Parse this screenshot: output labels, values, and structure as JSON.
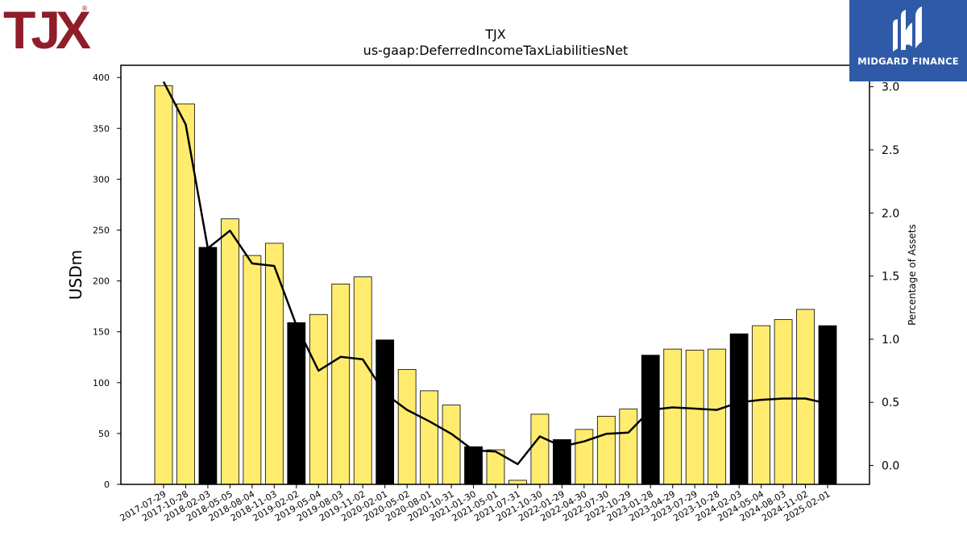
{
  "brand": {
    "logo_text": "TJX",
    "registered_mark": "®",
    "color": "#8f1d2a"
  },
  "partner": {
    "name": "MIDGARD FINANCE",
    "background": "#2f5aa8"
  },
  "chart_data": {
    "type": "bar",
    "title": "TJX",
    "subtitle": "us-gaap:DeferredIncomeTaxLiabilitiesNet",
    "ylabel": "USDm",
    "y2label": "Percentage of Assets",
    "ylim": [
      0,
      412
    ],
    "y2lim": [
      -0.15,
      3.17
    ],
    "yticks": [
      0,
      50,
      100,
      150,
      200,
      250,
      300,
      350,
      400
    ],
    "y2ticks": [
      "0.0",
      "0.5",
      "1.0",
      "1.5",
      "2.0",
      "2.5",
      "3.0"
    ],
    "bar_colors": {
      "quarter": "#ffec6e",
      "fiscal_year_end": "#000000"
    },
    "line_color": "#000000",
    "grid": false,
    "categories": [
      "2017-07-29",
      "2017-10-28",
      "2018-02-03",
      "2018-05-05",
      "2018-08-04",
      "2018-11-03",
      "2019-02-02",
      "2019-05-04",
      "2019-08-03",
      "2019-11-02",
      "2020-02-01",
      "2020-05-02",
      "2020-08-01",
      "2020-10-31",
      "2021-01-30",
      "2021-05-01",
      "2021-07-31",
      "2021-10-30",
      "2022-01-29",
      "2022-04-30",
      "2022-07-30",
      "2022-10-29",
      "2023-01-28",
      "2023-04-29",
      "2023-07-29",
      "2023-10-28",
      "2024-02-03",
      "2024-05-04",
      "2024-08-03",
      "2024-11-02",
      "2025-02-01"
    ],
    "series": [
      {
        "kind": "bar",
        "axis": "left",
        "values": [
          392,
          374,
          233,
          261,
          225,
          237,
          159,
          167,
          197,
          204,
          142,
          113,
          92,
          78,
          37,
          34,
          4,
          69,
          44,
          54,
          67,
          74,
          127,
          133,
          132,
          133,
          148,
          156,
          162,
          172,
          156
        ],
        "fiscal_year_end": [
          false,
          false,
          true,
          false,
          false,
          false,
          true,
          false,
          false,
          false,
          true,
          false,
          false,
          false,
          true,
          false,
          false,
          false,
          true,
          false,
          false,
          false,
          true,
          false,
          false,
          false,
          true,
          false,
          false,
          false,
          true
        ]
      },
      {
        "kind": "line",
        "axis": "right",
        "values": [
          3.04,
          2.7,
          1.72,
          1.86,
          1.6,
          1.58,
          1.11,
          0.75,
          0.86,
          0.84,
          0.57,
          0.44,
          0.35,
          0.25,
          0.12,
          0.11,
          0.01,
          0.23,
          0.15,
          0.19,
          0.25,
          0.26,
          0.44,
          0.46,
          0.45,
          0.44,
          0.5,
          0.52,
          0.53,
          0.53,
          0.49
        ]
      }
    ]
  }
}
